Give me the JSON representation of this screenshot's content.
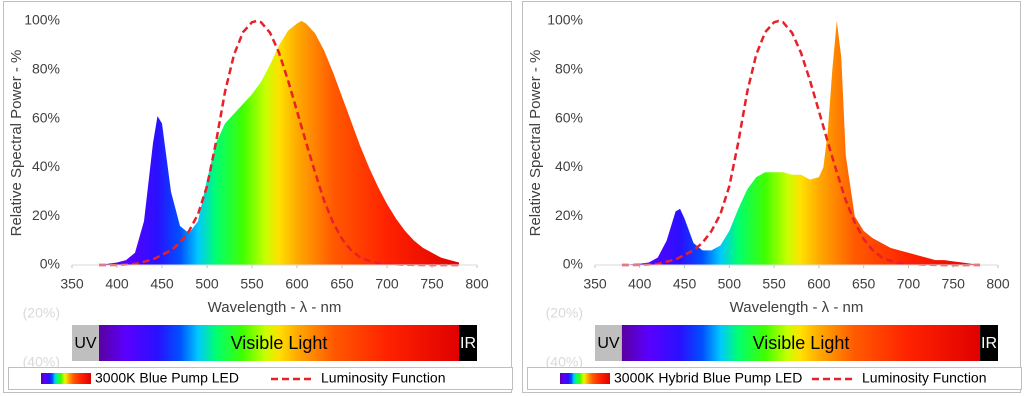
{
  "chart_data": [
    {
      "type": "area",
      "x_label": "Wavelength - λ - nm",
      "y_label": "Relative Spectral Power - %",
      "xlim": [
        350,
        800
      ],
      "xticks": [
        350,
        400,
        450,
        500,
        550,
        600,
        650,
        700,
        750,
        800
      ],
      "ylim": [
        -40,
        100
      ],
      "yticks": [
        {
          "value": -40,
          "label": "(40%)"
        },
        {
          "value": -20,
          "label": "(20%)"
        },
        {
          "value": 0,
          "label": "0%"
        },
        {
          "value": 20,
          "label": "20%"
        },
        {
          "value": 40,
          "label": "40%"
        },
        {
          "value": 60,
          "label": "60%"
        },
        {
          "value": 80,
          "label": "80%"
        },
        {
          "value": 100,
          "label": "100%"
        }
      ],
      "grid": false,
      "bands": [
        {
          "label": "UV",
          "range": [
            350,
            380
          ],
          "color": "#bfbfbf"
        },
        {
          "label": "Visible Light",
          "range": [
            380,
            780
          ],
          "color": "spectrum"
        },
        {
          "label": "IR",
          "range": [
            780,
            800
          ],
          "color": "#000000"
        }
      ],
      "series": [
        {
          "name": "3000K Blue Pump LED",
          "color": "spectrum",
          "x": [
            380,
            390,
            400,
            410,
            420,
            430,
            440,
            445,
            450,
            460,
            470,
            480,
            490,
            500,
            510,
            520,
            530,
            540,
            550,
            560,
            570,
            580,
            590,
            600,
            605,
            610,
            620,
            630,
            640,
            650,
            660,
            670,
            680,
            690,
            700,
            710,
            720,
            730,
            740,
            750,
            760,
            770,
            780
          ],
          "values": [
            0,
            0.5,
            1,
            2,
            5,
            18,
            50,
            61,
            58,
            30,
            16,
            13,
            18,
            35,
            50,
            58,
            62,
            66,
            70,
            75,
            82,
            90,
            96,
            99,
            100,
            99,
            95,
            88,
            79,
            69,
            59,
            49,
            40,
            32,
            25,
            19,
            14,
            10,
            7,
            5,
            3,
            2,
            1
          ]
        },
        {
          "name": "Luminosity Function",
          "color": "#e8202a",
          "style": "dashed",
          "x": [
            380,
            400,
            420,
            440,
            460,
            470,
            480,
            490,
            500,
            510,
            520,
            530,
            540,
            550,
            555,
            560,
            570,
            580,
            590,
            600,
            610,
            620,
            630,
            640,
            650,
            660,
            670,
            680,
            690,
            700,
            720,
            740,
            780
          ],
          "values": [
            0,
            0.04,
            0.4,
            2.3,
            6,
            9.1,
            13.9,
            20.8,
            32.3,
            50.3,
            71,
            86.2,
            95.4,
            99.5,
            100,
            99.5,
            95.2,
            87,
            75.7,
            63.1,
            50.3,
            38.1,
            26.5,
            17.5,
            10.7,
            6.1,
            3.2,
            1.7,
            0.8,
            0.4,
            0.1,
            0,
            0
          ]
        }
      ]
    },
    {
      "type": "area",
      "x_label": "Wavelength - λ - nm",
      "y_label": "Relative Spectral Power - %",
      "xlim": [
        350,
        800
      ],
      "xticks": [
        350,
        400,
        450,
        500,
        550,
        600,
        650,
        700,
        750,
        800
      ],
      "ylim": [
        -40,
        100
      ],
      "yticks": [
        {
          "value": -40,
          "label": "(40%)"
        },
        {
          "value": -20,
          "label": "(20%)"
        },
        {
          "value": 0,
          "label": "0%"
        },
        {
          "value": 20,
          "label": "20%"
        },
        {
          "value": 40,
          "label": "40%"
        },
        {
          "value": 60,
          "label": "60%"
        },
        {
          "value": 80,
          "label": "80%"
        },
        {
          "value": 100,
          "label": "100%"
        }
      ],
      "grid": false,
      "bands": [
        {
          "label": "UV",
          "range": [
            350,
            380
          ],
          "color": "#bfbfbf"
        },
        {
          "label": "Visible Light",
          "range": [
            380,
            780
          ],
          "color": "spectrum"
        },
        {
          "label": "IR",
          "range": [
            780,
            800
          ],
          "color": "#000000"
        }
      ],
      "series": [
        {
          "name": "3000K Hybrid Blue Pump LED",
          "color": "spectrum",
          "x": [
            380,
            390,
            400,
            410,
            420,
            430,
            440,
            445,
            450,
            460,
            470,
            480,
            490,
            500,
            510,
            520,
            530,
            540,
            550,
            560,
            570,
            580,
            590,
            600,
            605,
            610,
            615,
            620,
            625,
            630,
            640,
            650,
            660,
            670,
            680,
            690,
            700,
            710,
            720,
            730,
            740,
            750,
            760,
            770,
            780
          ],
          "values": [
            0,
            0.3,
            0.5,
            1,
            3,
            10,
            22,
            23,
            19,
            9,
            6,
            6,
            8,
            14,
            23,
            31,
            36,
            38,
            38,
            38,
            37,
            37,
            35,
            36,
            40,
            55,
            80,
            100,
            85,
            45,
            20,
            14,
            11,
            9,
            7,
            6,
            5,
            4,
            3,
            2,
            2,
            1.5,
            1,
            0.5,
            0
          ]
        },
        {
          "name": "Luminosity Function",
          "color": "#e8202a",
          "style": "dashed",
          "x": [
            380,
            400,
            420,
            440,
            460,
            470,
            480,
            490,
            500,
            510,
            520,
            530,
            540,
            550,
            555,
            560,
            570,
            580,
            590,
            600,
            610,
            620,
            630,
            640,
            650,
            660,
            670,
            680,
            690,
            700,
            720,
            740,
            780
          ],
          "values": [
            0,
            0.04,
            0.4,
            2.3,
            6,
            9.1,
            13.9,
            20.8,
            32.3,
            50.3,
            71,
            86.2,
            95.4,
            99.5,
            100,
            99.5,
            95.2,
            87,
            75.7,
            63.1,
            50.3,
            38.1,
            26.5,
            17.5,
            10.7,
            6.1,
            3.2,
            1.7,
            0.8,
            0.4,
            0.1,
            0,
            0
          ]
        }
      ]
    }
  ]
}
